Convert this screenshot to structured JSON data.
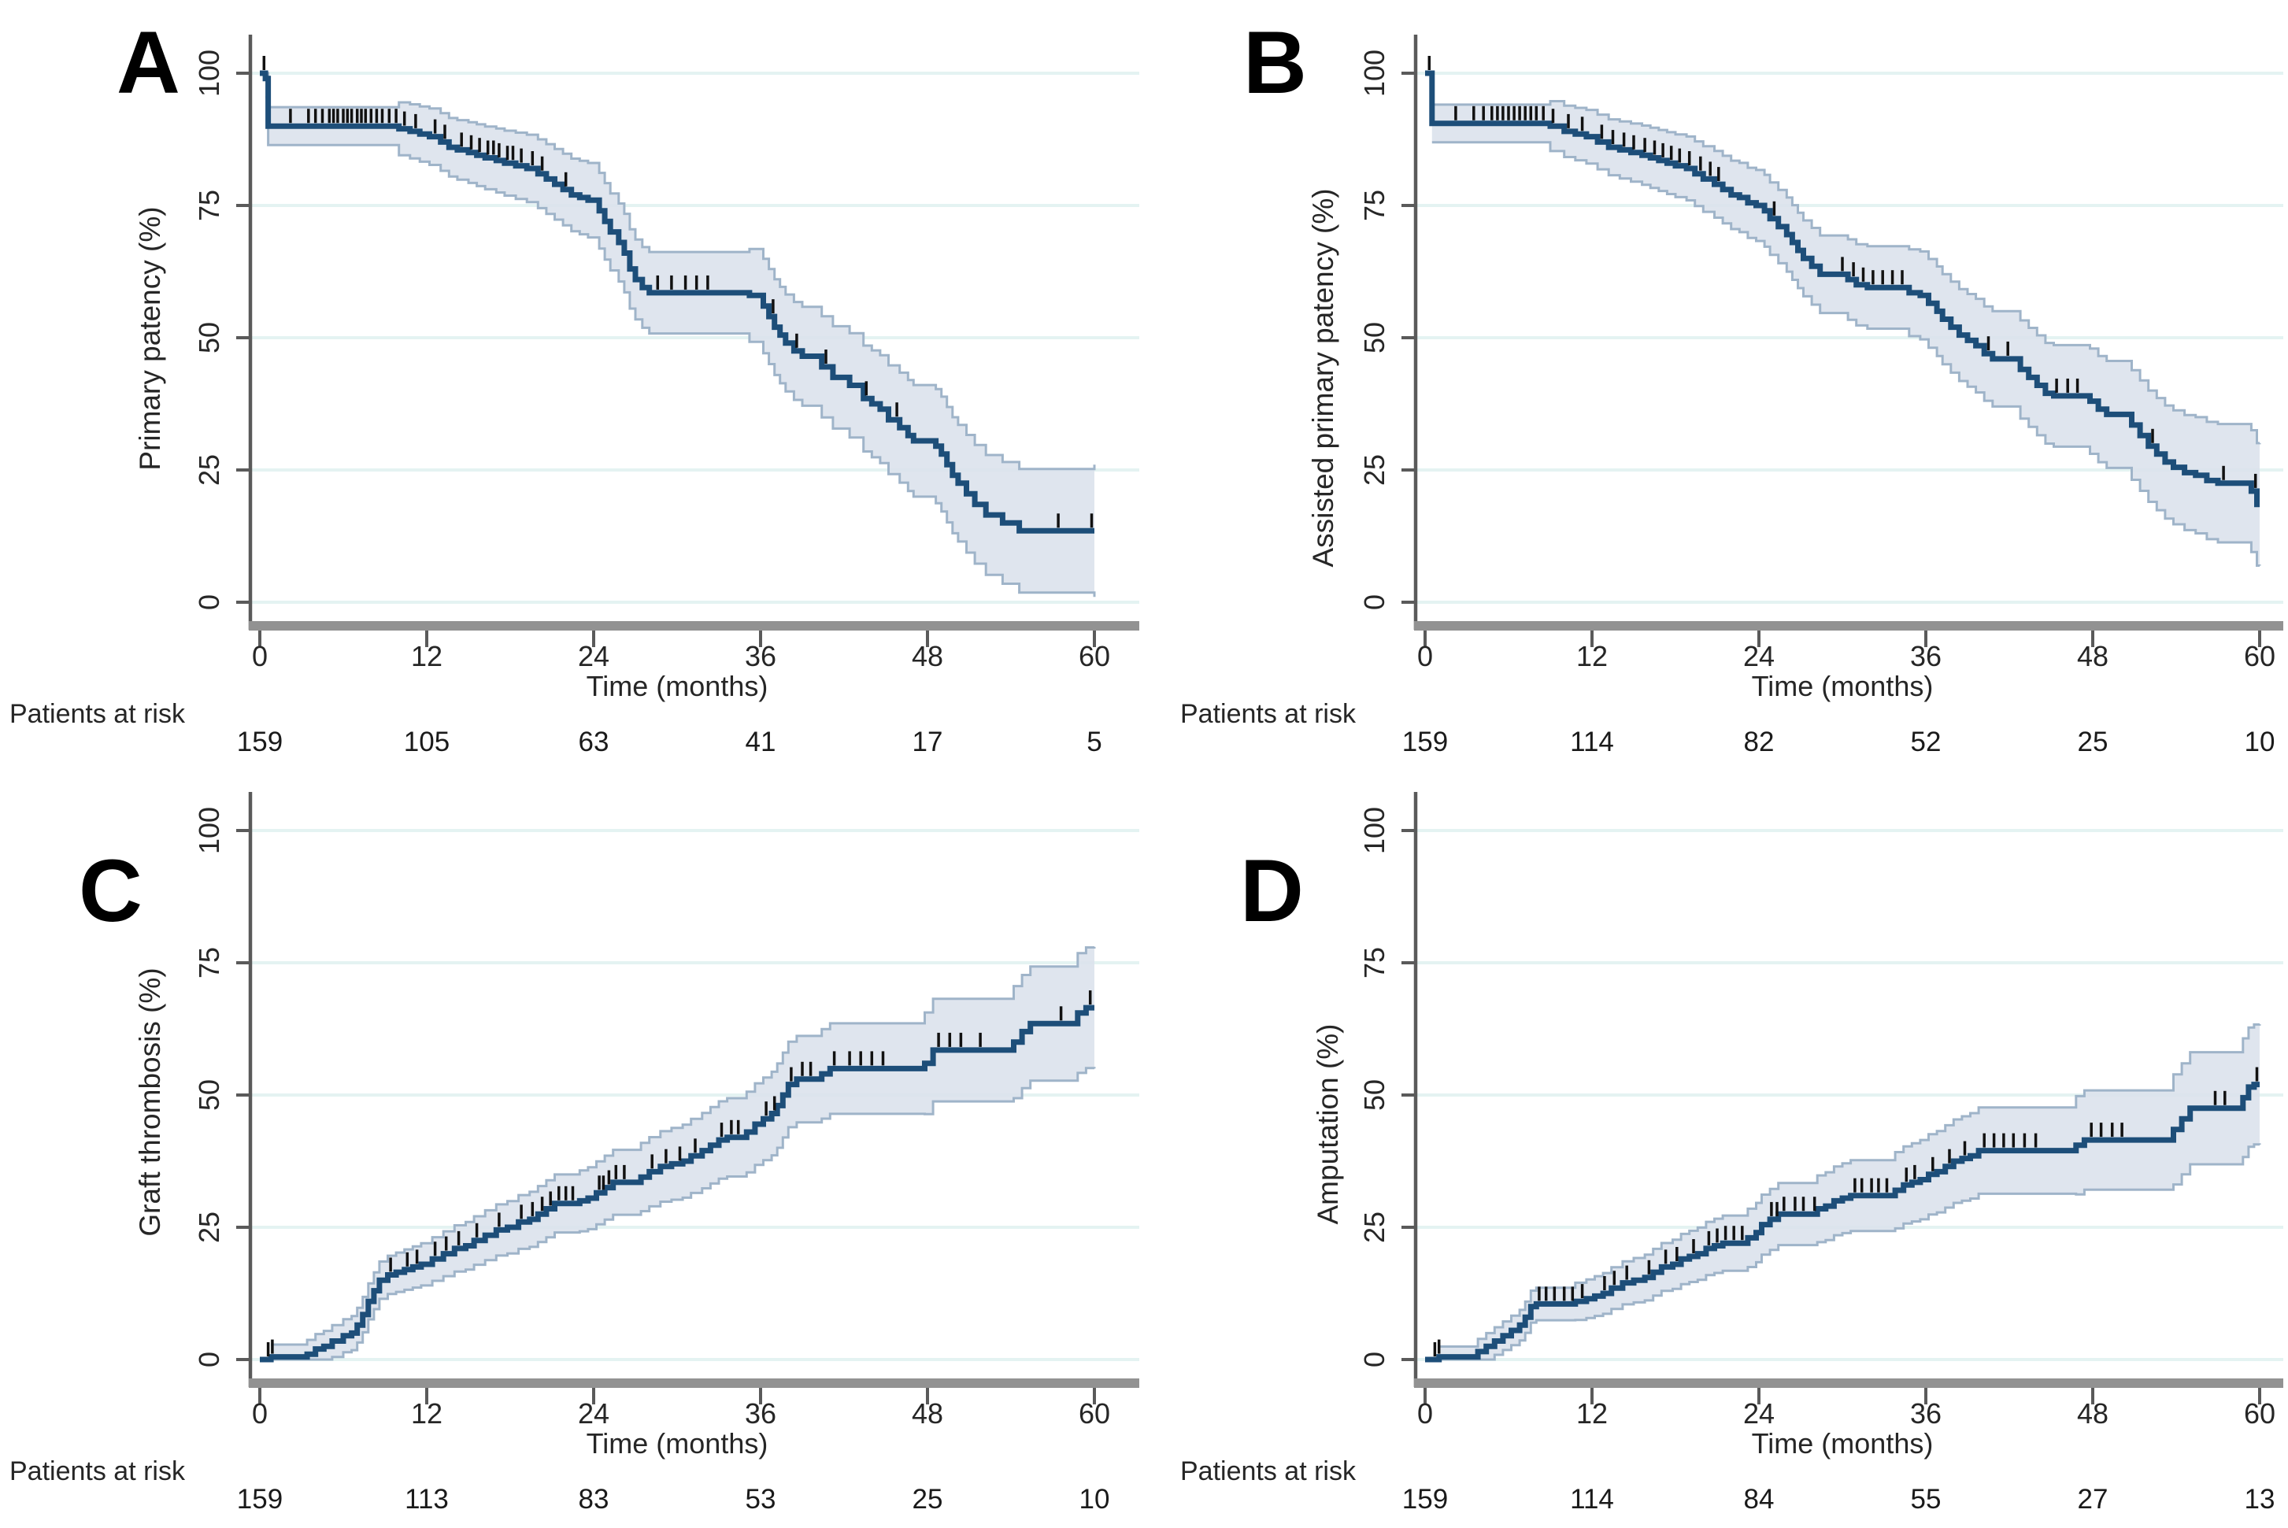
{
  "colors": {
    "curve": "#1d4e79",
    "band_fill": "#dbe1ec",
    "band_edge": "#9fb4c9",
    "grid": "#e4f3f2",
    "axis": "#5a5a5a",
    "xaxis_bar": "#929292",
    "text": "#262626",
    "censor": "#111111",
    "background": "#ffffff"
  },
  "chart_data": [
    {
      "panel": "A",
      "type": "line",
      "ylabel": "Primary patency (%)",
      "xlabel": "Time (months)",
      "risk_label": "Patients at risk",
      "x_ticks": [
        0,
        12,
        24,
        36,
        48,
        60
      ],
      "y_ticks": [
        0,
        25,
        50,
        75,
        100
      ],
      "xlim": [
        0,
        60
      ],
      "ylim": [
        0,
        100
      ],
      "at_risk": [
        159,
        105,
        63,
        41,
        17,
        5
      ],
      "steps": [
        [
          0,
          100
        ],
        [
          0.4,
          99
        ],
        [
          0.6,
          90
        ],
        [
          10,
          89.5
        ],
        [
          10.8,
          89
        ],
        [
          11.5,
          88.5
        ],
        [
          12.2,
          88
        ],
        [
          13,
          87
        ],
        [
          13.6,
          86
        ],
        [
          14.2,
          85.5
        ],
        [
          15,
          85
        ],
        [
          15.6,
          84.5
        ],
        [
          16.2,
          84
        ],
        [
          17,
          83.5
        ],
        [
          17.6,
          83
        ],
        [
          18.4,
          82.5
        ],
        [
          19.2,
          82
        ],
        [
          20,
          81
        ],
        [
          20.6,
          80
        ],
        [
          21.2,
          79
        ],
        [
          21.8,
          78
        ],
        [
          22.4,
          77
        ],
        [
          23,
          76.5
        ],
        [
          23.6,
          76
        ],
        [
          24.4,
          74
        ],
        [
          24.8,
          72
        ],
        [
          25.2,
          70
        ],
        [
          25.8,
          68
        ],
        [
          26.2,
          66
        ],
        [
          26.6,
          63
        ],
        [
          27,
          61
        ],
        [
          27.5,
          59.5
        ],
        [
          28,
          58.5
        ],
        [
          35.2,
          58
        ],
        [
          36.2,
          56
        ],
        [
          36.6,
          54
        ],
        [
          37,
          52
        ],
        [
          37.4,
          50.5
        ],
        [
          37.8,
          49
        ],
        [
          38.4,
          47.5
        ],
        [
          39,
          46.5
        ],
        [
          40.4,
          44.5
        ],
        [
          41.2,
          42.5
        ],
        [
          42.4,
          41
        ],
        [
          43.4,
          38.5
        ],
        [
          44,
          37.5
        ],
        [
          44.6,
          36.5
        ],
        [
          45.2,
          34.5
        ],
        [
          46,
          33
        ],
        [
          46.6,
          31.5
        ],
        [
          47,
          30.5
        ],
        [
          48.6,
          29.5
        ],
        [
          49,
          28
        ],
        [
          49.4,
          26
        ],
        [
          49.8,
          24
        ],
        [
          50.2,
          22.5
        ],
        [
          50.8,
          20.5
        ],
        [
          51.4,
          18.5
        ],
        [
          52.2,
          16.5
        ],
        [
          53.4,
          15
        ],
        [
          54.6,
          13.5
        ],
        [
          60,
          13.5
        ]
      ],
      "censor_times": [
        0.3,
        2.2,
        3.5,
        4,
        4.5,
        5,
        5.3,
        5.6,
        6,
        6.3,
        6.6,
        7,
        7.3,
        7.6,
        8,
        8.4,
        8.8,
        9.3,
        9.8,
        10.4,
        11.2,
        12.6,
        13.3,
        14.5,
        15.2,
        15.8,
        16.4,
        16.8,
        17.2,
        17.8,
        18.2,
        18.8,
        19.6,
        20.3,
        22,
        28.6,
        29.6,
        30.6,
        31.4,
        32.2,
        36.9,
        38.6,
        40.7,
        43.6,
        45.8,
        57.4,
        59.8
      ],
      "ci": {
        "base": 3.5,
        "growth": 0.15
      }
    },
    {
      "panel": "B",
      "type": "line",
      "ylabel": "Assisted primary patency (%)",
      "xlabel": "Time (months)",
      "risk_label": "Patients at risk",
      "x_ticks": [
        0,
        12,
        24,
        36,
        48,
        60
      ],
      "y_ticks": [
        0,
        25,
        50,
        75,
        100
      ],
      "xlim": [
        0,
        60
      ],
      "ylim": [
        0,
        100
      ],
      "at_risk": [
        159,
        114,
        82,
        52,
        25,
        10
      ],
      "steps": [
        [
          0,
          100
        ],
        [
          0.5,
          90.5
        ],
        [
          9,
          90
        ],
        [
          10,
          89
        ],
        [
          10.8,
          88.5
        ],
        [
          11.6,
          88
        ],
        [
          12.4,
          87
        ],
        [
          13.2,
          86
        ],
        [
          14,
          85.5
        ],
        [
          14.8,
          85
        ],
        [
          15.6,
          84.5
        ],
        [
          16.2,
          84
        ],
        [
          16.8,
          83.5
        ],
        [
          17.4,
          83
        ],
        [
          18,
          82.5
        ],
        [
          18.8,
          82
        ],
        [
          19.4,
          81
        ],
        [
          20,
          80
        ],
        [
          20.8,
          79
        ],
        [
          21.4,
          78
        ],
        [
          22,
          77
        ],
        [
          22.6,
          76.5
        ],
        [
          23.2,
          75.5
        ],
        [
          23.8,
          75
        ],
        [
          24.4,
          74
        ],
        [
          24.8,
          72.5
        ],
        [
          25.4,
          71
        ],
        [
          26,
          69.5
        ],
        [
          26.4,
          68
        ],
        [
          26.8,
          66.5
        ],
        [
          27.2,
          65
        ],
        [
          27.8,
          63.5
        ],
        [
          28.4,
          62
        ],
        [
          30.4,
          61
        ],
        [
          31,
          60
        ],
        [
          31.8,
          59.5
        ],
        [
          34.8,
          58.5
        ],
        [
          35.6,
          58
        ],
        [
          36.2,
          56.5
        ],
        [
          36.8,
          55
        ],
        [
          37.2,
          53.5
        ],
        [
          37.8,
          52
        ],
        [
          38.4,
          50.5
        ],
        [
          39,
          49.5
        ],
        [
          39.6,
          48.5
        ],
        [
          40.2,
          47
        ],
        [
          40.8,
          46
        ],
        [
          42.8,
          44
        ],
        [
          43.4,
          42.5
        ],
        [
          44,
          41
        ],
        [
          44.6,
          39.5
        ],
        [
          45.2,
          39
        ],
        [
          47.8,
          38
        ],
        [
          48.4,
          36.5
        ],
        [
          49,
          35.5
        ],
        [
          50.8,
          33.5
        ],
        [
          51.4,
          31.5
        ],
        [
          52,
          29.5
        ],
        [
          52.6,
          28
        ],
        [
          53.2,
          26.5
        ],
        [
          53.8,
          25.5
        ],
        [
          54.6,
          24.5
        ],
        [
          55.4,
          24
        ],
        [
          56.2,
          23
        ],
        [
          57,
          22.5
        ],
        [
          59.4,
          21
        ],
        [
          59.8,
          18.5
        ],
        [
          60,
          18.5
        ]
      ],
      "censor_times": [
        0.3,
        2.2,
        3.5,
        4.2,
        4.8,
        5.2,
        5.6,
        6,
        6.4,
        6.8,
        7.2,
        7.6,
        8,
        8.5,
        9.2,
        10.3,
        11.3,
        12.7,
        13.5,
        14.3,
        15,
        15.8,
        16.5,
        17.1,
        17.7,
        18.3,
        19,
        19.8,
        20.5,
        21.1,
        25.1,
        30,
        30.8,
        31.5,
        32.2,
        32.9,
        33.6,
        34.3,
        40.5,
        41.9,
        45.4,
        46.2,
        46.9,
        52.3,
        57.4,
        59.7
      ],
      "ci": {
        "base": 3.5,
        "growth": 0.135
      }
    },
    {
      "panel": "C",
      "type": "line",
      "ylabel": "Graft thrombosis (%)",
      "xlabel": "Time (months)",
      "risk_label": "Patients at risk",
      "x_ticks": [
        0,
        12,
        24,
        36,
        48,
        60
      ],
      "y_ticks": [
        0,
        25,
        50,
        75,
        100
      ],
      "xlim": [
        0,
        60
      ],
      "ylim": [
        0,
        100
      ],
      "at_risk": [
        159,
        113,
        83,
        53,
        25,
        10
      ],
      "steps": [
        [
          0,
          0
        ],
        [
          0.8,
          0.5
        ],
        [
          3.4,
          1
        ],
        [
          4,
          2
        ],
        [
          4.6,
          2.5
        ],
        [
          5.2,
          3.5
        ],
        [
          6,
          4.5
        ],
        [
          6.6,
          5
        ],
        [
          7,
          6.5
        ],
        [
          7.4,
          8.5
        ],
        [
          7.8,
          11
        ],
        [
          8.2,
          13
        ],
        [
          8.6,
          15
        ],
        [
          9.2,
          16
        ],
        [
          9.8,
          16.5
        ],
        [
          10.4,
          17
        ],
        [
          11,
          17.5
        ],
        [
          11.6,
          18
        ],
        [
          12.4,
          19
        ],
        [
          13.2,
          20
        ],
        [
          14,
          21
        ],
        [
          14.8,
          21.5
        ],
        [
          15.4,
          22.5
        ],
        [
          16.2,
          23.5
        ],
        [
          17,
          24.5
        ],
        [
          17.8,
          25
        ],
        [
          18.6,
          26
        ],
        [
          19.4,
          26.5
        ],
        [
          20,
          27.5
        ],
        [
          20.6,
          28.5
        ],
        [
          21.2,
          29.5
        ],
        [
          23,
          30
        ],
        [
          23.6,
          30.5
        ],
        [
          24.2,
          31.5
        ],
        [
          24.8,
          32.5
        ],
        [
          25.4,
          33.5
        ],
        [
          27.4,
          34.5
        ],
        [
          28,
          35.5
        ],
        [
          28.8,
          36.5
        ],
        [
          29.6,
          37
        ],
        [
          30.4,
          37.5
        ],
        [
          31,
          38.5
        ],
        [
          31.8,
          39.5
        ],
        [
          32.4,
          40.5
        ],
        [
          33,
          41.5
        ],
        [
          33.6,
          42
        ],
        [
          35,
          43
        ],
        [
          35.6,
          44.5
        ],
        [
          36.2,
          45.5
        ],
        [
          36.8,
          46.5
        ],
        [
          37.2,
          48
        ],
        [
          37.6,
          50
        ],
        [
          38,
          52
        ],
        [
          38.6,
          53
        ],
        [
          40.4,
          54
        ],
        [
          41,
          55
        ],
        [
          47.8,
          56
        ],
        [
          48.4,
          58.5
        ],
        [
          54.2,
          60
        ],
        [
          54.8,
          62
        ],
        [
          55.4,
          63.5
        ],
        [
          58.8,
          65.5
        ],
        [
          59.4,
          66.5
        ],
        [
          60,
          66.5
        ]
      ],
      "censor_times": [
        0.6,
        0.9,
        9.4,
        10.6,
        11.3,
        12.6,
        13.4,
        14.3,
        15.6,
        17.2,
        18.8,
        19.6,
        20.3,
        20.9,
        21.5,
        22,
        22.5,
        24.4,
        24.7,
        25.1,
        25.6,
        26.2,
        28.2,
        29.2,
        30.2,
        31.3,
        33.2,
        33.9,
        34.4,
        36.4,
        37,
        38.2,
        39,
        39.6,
        41.3,
        42.4,
        43.2,
        44,
        44.8,
        48.8,
        49.6,
        50.4,
        51.8,
        57.6,
        59.7
      ],
      "ci": {
        "base": 2.2,
        "growth": 0.155
      }
    },
    {
      "panel": "D",
      "type": "line",
      "ylabel": "Amputation (%)",
      "xlabel": "Time (months)",
      "risk_label": "Patients at risk",
      "x_ticks": [
        0,
        12,
        24,
        36,
        48,
        60
      ],
      "y_ticks": [
        0,
        25,
        50,
        75,
        100
      ],
      "xlim": [
        0,
        60
      ],
      "ylim": [
        0,
        100
      ],
      "at_risk": [
        159,
        114,
        84,
        55,
        27,
        13
      ],
      "steps": [
        [
          0,
          0
        ],
        [
          1,
          0.5
        ],
        [
          3.8,
          1.5
        ],
        [
          4.4,
          2.5
        ],
        [
          5,
          3.5
        ],
        [
          5.6,
          4.5
        ],
        [
          6.2,
          5.5
        ],
        [
          6.8,
          6.5
        ],
        [
          7.2,
          8
        ],
        [
          7.6,
          10
        ],
        [
          8,
          10.5
        ],
        [
          10.8,
          11
        ],
        [
          11.6,
          11.5
        ],
        [
          12.2,
          12
        ],
        [
          12.8,
          12.5
        ],
        [
          13.4,
          13.5
        ],
        [
          14.2,
          14.5
        ],
        [
          15,
          15
        ],
        [
          15.8,
          15.5
        ],
        [
          16.4,
          16.5
        ],
        [
          17,
          17.5
        ],
        [
          17.8,
          18
        ],
        [
          18.4,
          19
        ],
        [
          19,
          19.5
        ],
        [
          19.6,
          20
        ],
        [
          20.2,
          21
        ],
        [
          20.8,
          21.5
        ],
        [
          21.4,
          22
        ],
        [
          23.2,
          23
        ],
        [
          23.8,
          24
        ],
        [
          24.2,
          25.5
        ],
        [
          24.8,
          26.5
        ],
        [
          25.4,
          27.5
        ],
        [
          28.2,
          28.5
        ],
        [
          28.8,
          29
        ],
        [
          29.4,
          30
        ],
        [
          30,
          30.5
        ],
        [
          30.6,
          31
        ],
        [
          33.8,
          32
        ],
        [
          34.4,
          33
        ],
        [
          35,
          33.5
        ],
        [
          35.6,
          34
        ],
        [
          36.2,
          35
        ],
        [
          36.8,
          35.5
        ],
        [
          37.4,
          36.5
        ],
        [
          38,
          37.5
        ],
        [
          38.6,
          38
        ],
        [
          39.2,
          38.5
        ],
        [
          39.8,
          39.5
        ],
        [
          46.8,
          40.5
        ],
        [
          47.4,
          41.5
        ],
        [
          53.8,
          43.5
        ],
        [
          54.4,
          45.5
        ],
        [
          55,
          47.5
        ],
        [
          58.8,
          49.5
        ],
        [
          59.2,
          51.5
        ],
        [
          59.6,
          52
        ],
        [
          60,
          52
        ]
      ],
      "censor_times": [
        0.7,
        1,
        8.2,
        8.7,
        9.3,
        10,
        10.6,
        11.3,
        12.9,
        13.6,
        14.5,
        16.1,
        17.3,
        18.1,
        19.3,
        20.4,
        21,
        21.6,
        22.2,
        22.8,
        24.9,
        25.3,
        25.8,
        26.6,
        27.2,
        28,
        30.9,
        31.4,
        32.1,
        32.6,
        33.2,
        34.6,
        35.2,
        36.5,
        37.7,
        38.8,
        40.2,
        40.9,
        41.6,
        42.3,
        43.1,
        43.9,
        47.9,
        48.6,
        49.4,
        50.1,
        56.8,
        57.5,
        59.8
      ],
      "ci": {
        "base": 1.8,
        "growth": 0.16
      }
    }
  ]
}
